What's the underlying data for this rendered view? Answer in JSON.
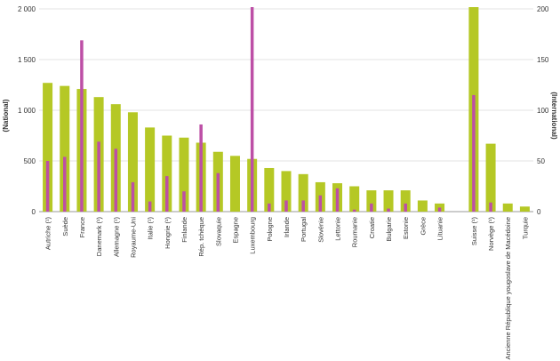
{
  "chart_data": {
    "type": "bar",
    "left_axis_label": "(National)",
    "right_axis_label": "(International)",
    "left_ylim": [
      0,
      2000
    ],
    "right_ylim": [
      0,
      200
    ],
    "left_ticks": [
      "0",
      "500",
      "1 000",
      "1 500",
      "2 000"
    ],
    "right_ticks": [
      "0",
      "50",
      "100",
      "150",
      "200"
    ],
    "grid": true,
    "categories": [
      "Autriche (¹)",
      "Suède",
      "France",
      "Danemark (¹)",
      "Allemagne (¹)",
      "Royaume-Uni",
      "Italie (¹)",
      "Hongrie (¹)",
      "Finlande",
      "Rép. tchèque",
      "Slovaquie",
      "Espagne",
      "Luxembourg",
      "Pologne",
      "Irlande",
      "Portugal",
      "Slovénie",
      "Lettonie",
      "Roumanie",
      "Croatie",
      "Bulgarie",
      "Estonie",
      "Grèce",
      "Lituanie",
      "",
      "Suisse (¹)",
      "Norvège (¹)",
      "Ancienne République yougoslave de Macédoine",
      "Turquie"
    ],
    "series": [
      {
        "axis": "left",
        "color": "#b5c825",
        "values": [
          1270,
          1240,
          1210,
          1130,
          1060,
          980,
          830,
          750,
          730,
          680,
          590,
          550,
          520,
          430,
          400,
          370,
          290,
          280,
          250,
          210,
          210,
          210,
          110,
          80,
          null,
          2200,
          670,
          80,
          50
        ]
      },
      {
        "axis": "right",
        "color": "#bd4fa6",
        "values": [
          50,
          54,
          169,
          69,
          62,
          29,
          10,
          35,
          20,
          86,
          38,
          0,
          203,
          8,
          11,
          11,
          16,
          23,
          2,
          8,
          3,
          8,
          0,
          4,
          null,
          115,
          9,
          0,
          0
        ]
      }
    ]
  }
}
